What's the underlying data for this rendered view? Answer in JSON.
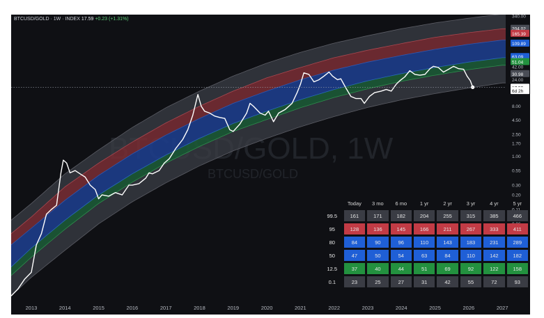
{
  "header": {
    "symbol": "BTCUSD/GOLD · 1W · INDEX",
    "price": "17.59",
    "change": "+0.23 (+1.31%)"
  },
  "watermark": {
    "main": "BTCUSD/GOLD, 1W",
    "sub": "BTCUSD/GOLD"
  },
  "colors": {
    "background": "#0f1014",
    "band_outer": "#3b3d45",
    "band_red": "#7a2e35",
    "band_blue": "#1d3d8a",
    "band_green": "#1c5a36",
    "price_line": "#ffffff",
    "red_badge": "#c23b45",
    "blue_badge": "#1f5fd6",
    "green_badge": "#23913f",
    "gray_badge": "#3a3c44"
  },
  "chart_data": {
    "type": "line",
    "scale": "log",
    "x_axis": {
      "ticks": [
        "2013",
        "2014",
        "2015",
        "2016",
        "2017",
        "2018",
        "2019",
        "2020",
        "2021",
        "2022",
        "2023",
        "2024",
        "2025",
        "2026",
        "2027"
      ],
      "range": [
        2012.4,
        2027.1
      ]
    },
    "y_axis": {
      "ticks": [
        "340.00",
        "24.00",
        "16.00",
        "8.00",
        "4.50",
        "2.50",
        "1.70",
        "1.00",
        "0.55",
        "0.30",
        "0.20",
        "0.11",
        "0.06",
        "0.03",
        "0.01"
      ],
      "range": [
        0.0024,
        360
      ]
    },
    "price_labels": [
      {
        "text": "204.02",
        "value": 204.02,
        "color": "#4a4d56"
      },
      {
        "text": "165.39",
        "value": 165.39,
        "color": "#c23b45"
      },
      {
        "text": "109.89",
        "value": 109.89,
        "color": "#1f5fd6"
      },
      {
        "text": "63.09",
        "value": 63.09,
        "color": "#1f5fd6"
      },
      {
        "text": "51.04",
        "value": 51.04,
        "color": "#23913f"
      },
      {
        "text": "42.00",
        "value": 42,
        "color": ""
      },
      {
        "text": "30.98",
        "value": 30.98,
        "color": "#4a4d56"
      },
      {
        "text": "17.59",
        "value": 17.59,
        "color": "#ffffff"
      },
      {
        "text": "6d 2h",
        "value": 15.3,
        "color": "#ffffff"
      }
    ],
    "series": [
      {
        "values": [
          [
            2012.4,
            0.003
          ],
          [
            2012.6,
            0.004
          ],
          [
            2012.8,
            0.006
          ],
          [
            2013.0,
            0.008
          ],
          [
            2013.15,
            0.025
          ],
          [
            2013.3,
            0.04
          ],
          [
            2013.45,
            0.09
          ],
          [
            2013.6,
            0.11
          ],
          [
            2013.75,
            0.13
          ],
          [
            2013.88,
            0.5
          ],
          [
            2013.95,
            0.85
          ],
          [
            2014.05,
            0.75
          ],
          [
            2014.15,
            0.5
          ],
          [
            2014.3,
            0.55
          ],
          [
            2014.45,
            0.48
          ],
          [
            2014.6,
            0.42
          ],
          [
            2014.75,
            0.3
          ],
          [
            2014.9,
            0.25
          ],
          [
            2015.0,
            0.17
          ],
          [
            2015.1,
            0.2
          ],
          [
            2015.3,
            0.19
          ],
          [
            2015.5,
            0.22
          ],
          [
            2015.7,
            0.2
          ],
          [
            2015.9,
            0.3
          ],
          [
            2016.0,
            0.3
          ],
          [
            2016.2,
            0.32
          ],
          [
            2016.4,
            0.4
          ],
          [
            2016.5,
            0.5
          ],
          [
            2016.6,
            0.48
          ],
          [
            2016.8,
            0.55
          ],
          [
            2016.95,
            0.75
          ],
          [
            2017.1,
            0.9
          ],
          [
            2017.3,
            1.4
          ],
          [
            2017.5,
            2.0
          ],
          [
            2017.65,
            3.0
          ],
          [
            2017.8,
            5.5
          ],
          [
            2017.95,
            13
          ],
          [
            2018.05,
            8
          ],
          [
            2018.15,
            6.5
          ],
          [
            2018.3,
            6
          ],
          [
            2018.45,
            5.3
          ],
          [
            2018.6,
            5.0
          ],
          [
            2018.75,
            4.8
          ],
          [
            2018.9,
            3.0
          ],
          [
            2019.0,
            2.8
          ],
          [
            2019.2,
            3.8
          ],
          [
            2019.4,
            6
          ],
          [
            2019.5,
            9
          ],
          [
            2019.6,
            8
          ],
          [
            2019.8,
            6
          ],
          [
            2019.95,
            5.5
          ],
          [
            2020.05,
            6.5
          ],
          [
            2020.2,
            4.2
          ],
          [
            2020.35,
            6
          ],
          [
            2020.55,
            7
          ],
          [
            2020.75,
            9
          ],
          [
            2020.9,
            14
          ],
          [
            2021.0,
            20
          ],
          [
            2021.1,
            32
          ],
          [
            2021.25,
            30
          ],
          [
            2021.4,
            22
          ],
          [
            2021.55,
            24
          ],
          [
            2021.7,
            28
          ],
          [
            2021.85,
            33
          ],
          [
            2021.95,
            28
          ],
          [
            2022.1,
            24
          ],
          [
            2022.2,
            25
          ],
          [
            2022.35,
            17
          ],
          [
            2022.5,
            12
          ],
          [
            2022.65,
            11
          ],
          [
            2022.8,
            11
          ],
          [
            2022.9,
            9
          ],
          [
            2023.05,
            12
          ],
          [
            2023.2,
            14
          ],
          [
            2023.4,
            15
          ],
          [
            2023.55,
            16
          ],
          [
            2023.7,
            15
          ],
          [
            2023.85,
            20
          ],
          [
            2023.95,
            23
          ],
          [
            2024.1,
            27
          ],
          [
            2024.25,
            35
          ],
          [
            2024.4,
            30
          ],
          [
            2024.55,
            29
          ],
          [
            2024.7,
            30
          ],
          [
            2024.85,
            38
          ],
          [
            2024.95,
            42
          ],
          [
            2025.1,
            40
          ],
          [
            2025.25,
            33
          ],
          [
            2025.4,
            37
          ],
          [
            2025.55,
            42
          ],
          [
            2025.7,
            38
          ],
          [
            2025.85,
            37
          ],
          [
            2025.95,
            28
          ],
          [
            2026.05,
            23
          ],
          [
            2026.12,
            17.59
          ]
        ]
      }
    ],
    "bands": {
      "top_outer": [
        [
          2012.4,
          0.07
        ],
        [
          2013,
          0.14
        ],
        [
          2014,
          0.48
        ],
        [
          2015,
          1.3
        ],
        [
          2016,
          3.3
        ],
        [
          2017,
          7.5
        ],
        [
          2018,
          15
        ],
        [
          2019,
          28
        ],
        [
          2020,
          48
        ],
        [
          2021,
          75
        ],
        [
          2022,
          110
        ],
        [
          2023,
          150
        ],
        [
          2024,
          200
        ],
        [
          2025,
          255
        ],
        [
          2026,
          310
        ],
        [
          2027,
          370
        ]
      ],
      "p95": [
        [
          2012.4,
          0.04
        ],
        [
          2013,
          0.08
        ],
        [
          2014,
          0.28
        ],
        [
          2015,
          0.75
        ],
        [
          2016,
          1.8
        ],
        [
          2017,
          4.0
        ],
        [
          2018,
          8
        ],
        [
          2019,
          15
        ],
        [
          2020,
          26
        ],
        [
          2021,
          40
        ],
        [
          2022,
          60
        ],
        [
          2023,
          82
        ],
        [
          2024,
          108
        ],
        [
          2025,
          140
        ],
        [
          2026,
          170
        ],
        [
          2027,
          200
        ]
      ],
      "p80": [
        [
          2012.4,
          0.025
        ],
        [
          2013,
          0.05
        ],
        [
          2014,
          0.16
        ],
        [
          2015,
          0.45
        ],
        [
          2016,
          1.1
        ],
        [
          2017,
          2.4
        ],
        [
          2018,
          4.8
        ],
        [
          2019,
          9
        ],
        [
          2020,
          15
        ],
        [
          2021,
          24
        ],
        [
          2022,
          36
        ],
        [
          2023,
          50
        ],
        [
          2024,
          66
        ],
        [
          2025,
          85
        ],
        [
          2026,
          105
        ],
        [
          2027,
          125
        ]
      ],
      "p50": [
        [
          2012.4,
          0.01
        ],
        [
          2013,
          0.022
        ],
        [
          2014,
          0.07
        ],
        [
          2015,
          0.2
        ],
        [
          2016,
          0.48
        ],
        [
          2017,
          1.05
        ],
        [
          2018,
          2.1
        ],
        [
          2019,
          3.9
        ],
        [
          2020,
          6.5
        ],
        [
          2021,
          10.5
        ],
        [
          2022,
          16
        ],
        [
          2023,
          23
        ],
        [
          2024,
          31
        ],
        [
          2025,
          40
        ],
        [
          2026,
          50
        ],
        [
          2027,
          60
        ]
      ],
      "p12_5": [
        [
          2012.4,
          0.007
        ],
        [
          2013,
          0.015
        ],
        [
          2014,
          0.048
        ],
        [
          2015,
          0.14
        ],
        [
          2016,
          0.34
        ],
        [
          2017,
          0.75
        ],
        [
          2018,
          1.5
        ],
        [
          2019,
          2.8
        ],
        [
          2020,
          4.6
        ],
        [
          2021,
          7.5
        ],
        [
          2022,
          11.5
        ],
        [
          2023,
          16.5
        ],
        [
          2024,
          22.5
        ],
        [
          2025,
          29
        ],
        [
          2026,
          36.5
        ],
        [
          2027,
          44
        ]
      ],
      "bottom_outer": [
        [
          2012.4,
          0.003
        ],
        [
          2013,
          0.0065
        ],
        [
          2014,
          0.02
        ],
        [
          2015,
          0.06
        ],
        [
          2016,
          0.15
        ],
        [
          2017,
          0.33
        ],
        [
          2018,
          0.67
        ],
        [
          2019,
          1.25
        ],
        [
          2020,
          2.1
        ],
        [
          2021,
          3.4
        ],
        [
          2022,
          5.2
        ],
        [
          2023,
          7.6
        ],
        [
          2024,
          10.4
        ],
        [
          2025,
          13.5
        ],
        [
          2026,
          17
        ],
        [
          2027,
          21
        ]
      ]
    },
    "table": {
      "columns": [
        "Today",
        "3 mo",
        "6 mo",
        "1 yr",
        "2 yr",
        "3 yr",
        "4 yr",
        "5 yr"
      ],
      "rows": [
        {
          "label": "99.5",
          "style": "gray",
          "values": [
            "161",
            "171",
            "182",
            "204",
            "255",
            "315",
            "385",
            "466"
          ]
        },
        {
          "label": "95",
          "style": "red",
          "values": [
            "128",
            "136",
            "145",
            "166",
            "211",
            "267",
            "333",
            "411"
          ]
        },
        {
          "label": "80",
          "style": "blue",
          "values": [
            "84",
            "90",
            "96",
            "110",
            "143",
            "183",
            "231",
            "289"
          ]
        },
        {
          "label": "50",
          "style": "blue",
          "values": [
            "47",
            "50",
            "54",
            "63",
            "84",
            "110",
            "142",
            "182"
          ]
        },
        {
          "label": "12.5",
          "style": "green",
          "values": [
            "37",
            "40",
            "44",
            "51",
            "69",
            "92",
            "122",
            "158"
          ]
        },
        {
          "label": "0.1",
          "style": "gray",
          "values": [
            "23",
            "25",
            "27",
            "31",
            "42",
            "55",
            "72",
            "93"
          ]
        }
      ]
    }
  }
}
